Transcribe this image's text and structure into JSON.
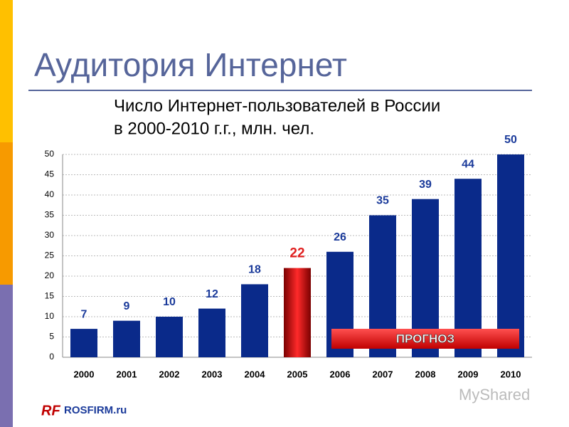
{
  "chart_data": {
    "type": "bar",
    "title": "Аудитория Интернет",
    "subtitle": [
      "Число Интернет-пользователей в России",
      "в 2000-2010 г.г., млн. чел."
    ],
    "categories": [
      "2000",
      "2001",
      "2002",
      "2003",
      "2004",
      "2005",
      "2006",
      "2007",
      "2008",
      "2009",
      "2010"
    ],
    "values": [
      7,
      9,
      10,
      12,
      18,
      22,
      26,
      35,
      39,
      44,
      50
    ],
    "colors": [
      "#0a2a8a",
      "#0a2a8a",
      "#0a2a8a",
      "#0a2a8a",
      "#0a2a8a",
      "#d01010",
      "#0a2a8a",
      "#0a2a8a",
      "#0a2a8a",
      "#0a2a8a",
      "#0a2a8a"
    ],
    "ylim": [
      0,
      50
    ],
    "yticks": [
      0,
      5,
      10,
      15,
      20,
      25,
      30,
      35,
      40,
      45,
      50
    ],
    "grid": true,
    "annotation": "ПРОГНОЗ"
  },
  "footer": {
    "logo": "ROSFIRM.ru",
    "watermark": "MyShared"
  }
}
